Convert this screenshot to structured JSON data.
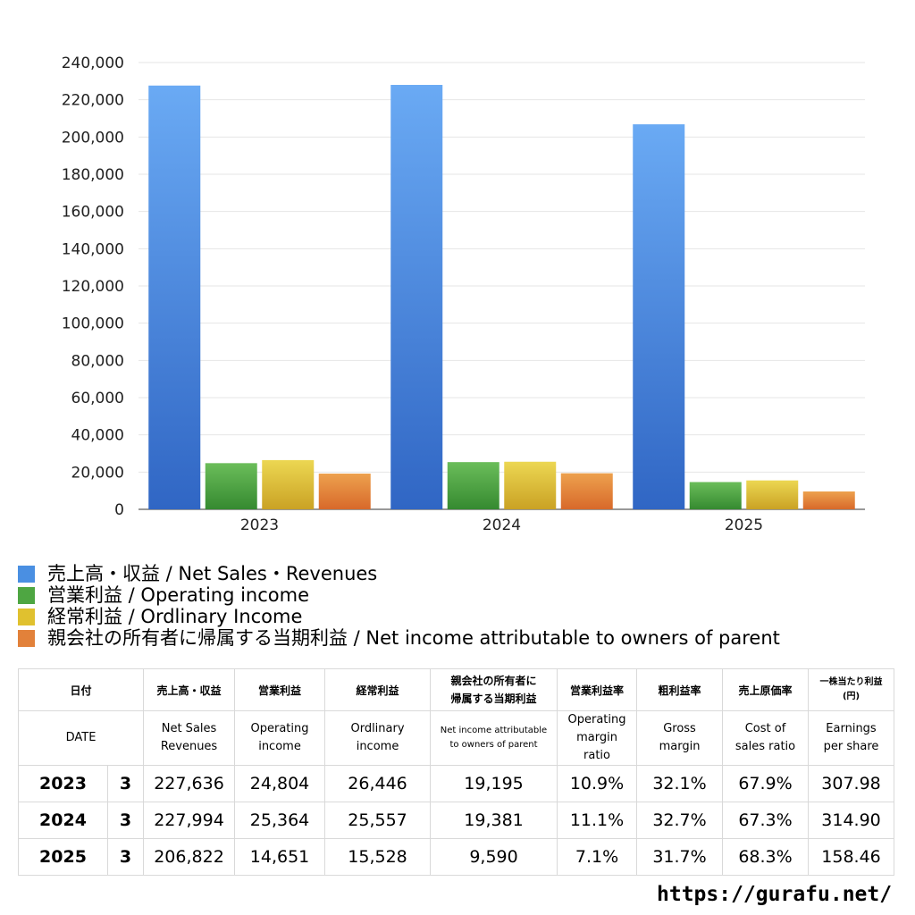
{
  "chart_data": {
    "type": "bar",
    "categories": [
      "2023",
      "2024",
      "2025"
    ],
    "series": [
      {
        "name": "売上高・収益 / Net Sales・Revenues",
        "values": [
          227636,
          227994,
          206822
        ],
        "color": "#4a8fe2"
      },
      {
        "name": "営業利益 / Operating income",
        "values": [
          24804,
          25364,
          14651
        ],
        "color": "#4ea642"
      },
      {
        "name": "経常利益 / Ordlinary Income",
        "values": [
          26446,
          25557,
          15528
        ],
        "color": "#e0c12f"
      },
      {
        "name": "親会社の所有者に帰属する当期利益 / Net income attributable to owners of parent",
        "values": [
          19195,
          19381,
          9590
        ],
        "color": "#e2813a"
      }
    ],
    "ylim": [
      0,
      240000
    ],
    "yticks": [
      "0",
      "20,000",
      "40,000",
      "60,000",
      "80,000",
      "100,000",
      "120,000",
      "140,000",
      "160,000",
      "180,000",
      "200,000",
      "220,000",
      "240,000"
    ],
    "grid": true,
    "legend_position": "bottom-left"
  },
  "table": {
    "header_jp": [
      "日付",
      "売上高・収益",
      "営業利益",
      "経常利益",
      "親会社の所有者に\n帰属する当期利益",
      "営業利益率",
      "粗利益率",
      "売上原価率",
      "一株当たり利益\n(円)"
    ],
    "header_en": [
      "DATE",
      "Net Sales\nRevenues",
      "Operating\nincome",
      "Ordlinary\nincome",
      "Net income attributable\nto owners of parent",
      "Operating\nmargin\nratio",
      "Gross\nmargin",
      "Cost of\nsales ratio",
      "Earnings\nper share"
    ],
    "rows": [
      {
        "year": "2023",
        "month": "3",
        "cells": [
          "227,636",
          "24,804",
          "26,446",
          "19,195",
          "10.9%",
          "32.1%",
          "67.9%",
          "307.98"
        ]
      },
      {
        "year": "2024",
        "month": "3",
        "cells": [
          "227,994",
          "25,364",
          "25,557",
          "19,381",
          "11.1%",
          "32.7%",
          "67.3%",
          "314.90"
        ]
      },
      {
        "year": "2025",
        "month": "3",
        "cells": [
          "206,822",
          "14,651",
          "15,528",
          "9,590",
          "7.1%",
          "31.7%",
          "68.3%",
          "158.46"
        ]
      }
    ]
  },
  "source_url": "https://gurafu.net/"
}
